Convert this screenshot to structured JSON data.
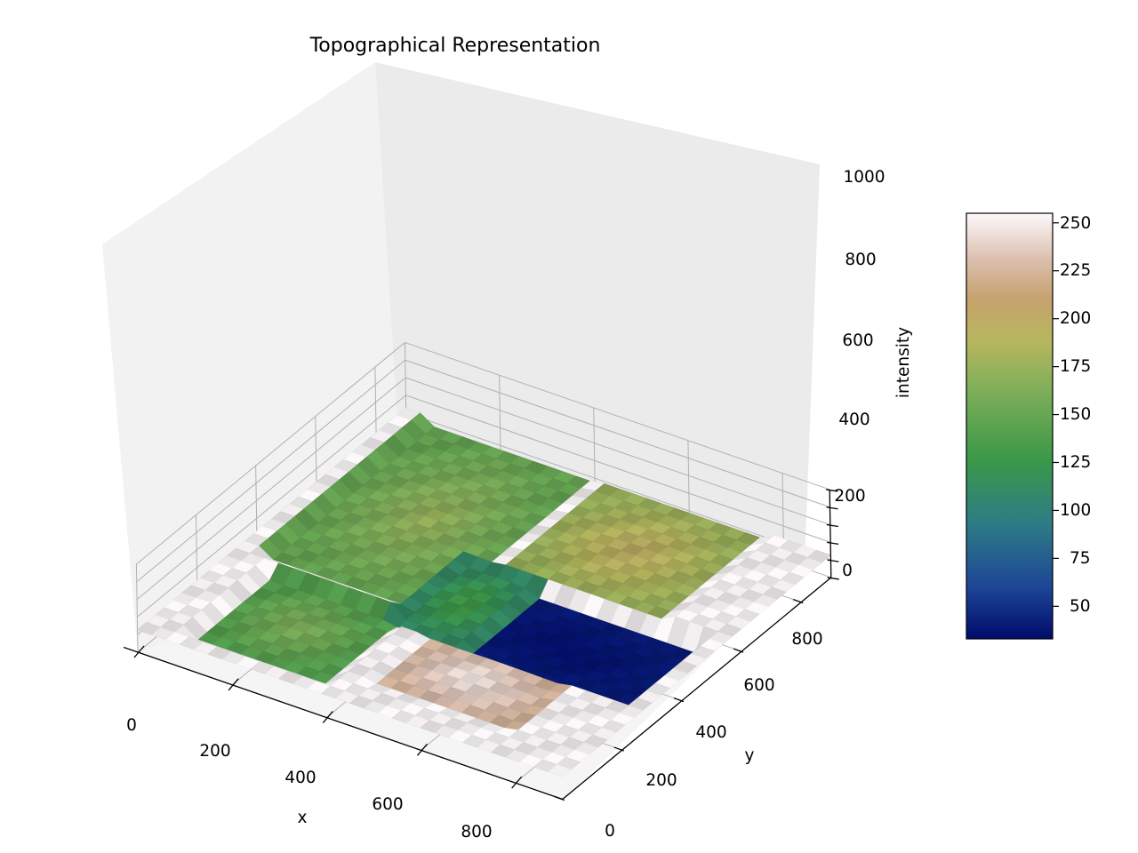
{
  "chart_data": {
    "type": "surface",
    "title": "Topographical Representation",
    "xlabel": "x",
    "ylabel": "y",
    "zlabel": "intensity",
    "xlim": [
      0,
      900
    ],
    "ylim": [
      0,
      900
    ],
    "zlim": [
      0,
      1000
    ],
    "x_ticks": [
      "0",
      "200",
      "400",
      "600",
      "800"
    ],
    "y_ticks": [
      "0",
      "200",
      "400",
      "600",
      "800"
    ],
    "z_ticks": [
      "0",
      "200",
      "400",
      "600",
      "800",
      "1000"
    ],
    "grid": true,
    "colormap": "gist_earth",
    "colorbar": {
      "range": [
        33,
        255
      ],
      "ticks": [
        "50",
        "75",
        "100",
        "125",
        "150",
        "175",
        "200",
        "225",
        "250"
      ],
      "colors": [
        "#000b6b",
        "#1d4596",
        "#2d7c86",
        "#3a9848",
        "#7dae59",
        "#b8b65e",
        "#c5a26e",
        "#dcbeae",
        "#fdf9fb"
      ]
    },
    "regions": [
      {
        "x": [
          0,
          900
        ],
        "y": [
          0,
          900
        ],
        "intensity": 255
      },
      {
        "x": [
          40,
          400
        ],
        "y": [
          360,
          900
        ],
        "intensity": 150
      },
      {
        "x": [
          420,
          760
        ],
        "y": [
          560,
          900
        ],
        "intensity": 175
      },
      {
        "x": [
          80,
          360
        ],
        "y": [
          60,
          320
        ],
        "intensity": 140
      },
      {
        "x": [
          440,
          740
        ],
        "y": [
          80,
          300
        ],
        "intensity": 225
      },
      {
        "x": [
          420,
          860
        ],
        "y": [
          300,
          540
        ],
        "intensity": 40
      },
      {
        "x": [
          340,
          500
        ],
        "y": [
          300,
          560
        ],
        "intensity": 110
      }
    ]
  }
}
